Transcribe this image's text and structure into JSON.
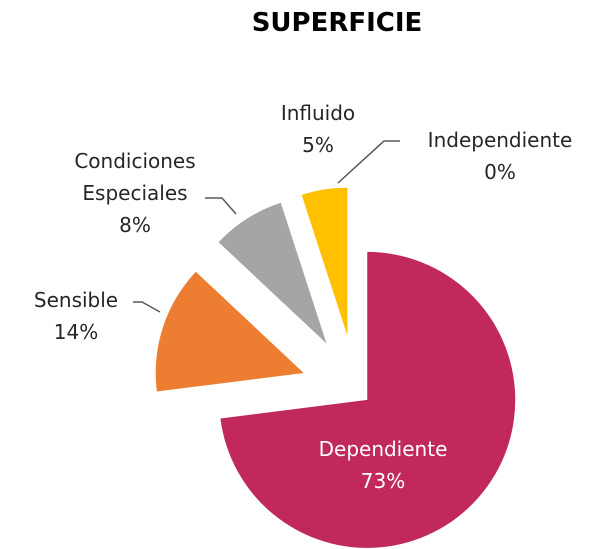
{
  "chart_data": {
    "type": "pie",
    "title": "SUPERFICIE",
    "categories": [
      "Dependiente",
      "Sensible",
      "Condiciones Especiales",
      "Influido",
      "Independiente"
    ],
    "values": [
      73,
      14,
      8,
      5,
      0
    ],
    "value_labels": [
      "73%",
      "14%",
      "8%",
      "5%",
      "0%"
    ],
    "colors": [
      "#c0295a",
      "#ed7d31",
      "#a5a5a5",
      "#ffc000",
      "#4472c4"
    ]
  }
}
